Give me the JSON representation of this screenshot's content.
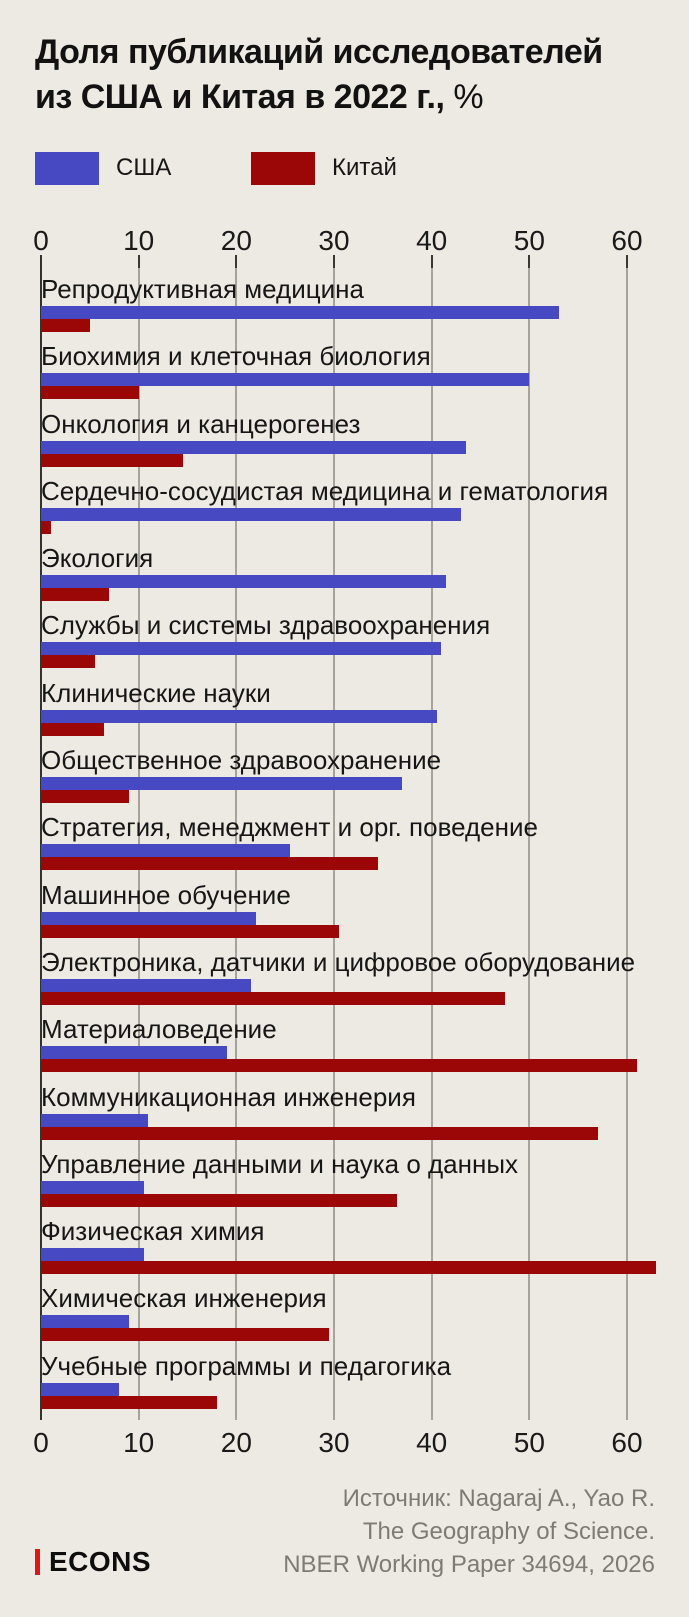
{
  "title": {
    "line1": "Доля публикаций исследователей",
    "line2_bold": "из США и Китая в 2022 г.,",
    "line2_suffix": " %"
  },
  "legend": {
    "usa": {
      "label": "США",
      "color": "#4649c2"
    },
    "china": {
      "label": "Китай",
      "color": "#9b0707"
    }
  },
  "chart_data": {
    "type": "bar",
    "orientation": "horizontal",
    "title": "Доля публикаций исследователей из США и Китая в 2022 г., %",
    "xlabel": "",
    "ylabel": "",
    "xlim": [
      0,
      60
    ],
    "x_ticks": [
      0,
      10,
      20,
      30,
      40,
      50,
      60
    ],
    "grid": true,
    "legend_position": "top",
    "categories": [
      "Репродуктивная медицина",
      "Биохимия и клеточная биология",
      "Онкология и канцерогенез",
      "Сердечно-сосудистая медицина и гематология",
      "Экология",
      "Службы и системы здравоохранения",
      "Клинические науки",
      "Общественное здравоохранение",
      "Стратегия, менеджмент и орг. поведение",
      "Машинное обучение",
      "Электроника, датчики и цифровое оборудование",
      "Материаловедение",
      "Коммуникационная инженерия",
      "Управление данными и наука о данных",
      "Физическая химия",
      "Химическая инженерия",
      "Учебные программы и педагогика"
    ],
    "series": [
      {
        "name": "США",
        "color": "#4649c2",
        "values": [
          53,
          50,
          43.5,
          43,
          41.5,
          41,
          40.5,
          37,
          25.5,
          22,
          21.5,
          19,
          11,
          10.5,
          10.5,
          9,
          8
        ]
      },
      {
        "name": "Китай",
        "color": "#9b0707",
        "values": [
          5,
          10,
          14.5,
          1,
          7,
          5.5,
          6.5,
          9,
          34.5,
          30.5,
          47.5,
          61,
          57,
          36.5,
          63,
          29.5,
          18
        ]
      }
    ]
  },
  "source": {
    "line1": "Источник: Nagaraj A., Yao R.",
    "line2": "The Geography of Science.",
    "line3": "NBER Working Paper 34694, 2026"
  },
  "logo": {
    "text": "ECONS"
  },
  "colors": {
    "background": "#edeae4",
    "usa_bar": "#4649c2",
    "china_bar": "#9b0707",
    "gridline": "#a7a39c",
    "axis": "#34322e",
    "text": "#161616",
    "source_text": "#7e7b76",
    "logo_accent": "#dd1810"
  }
}
